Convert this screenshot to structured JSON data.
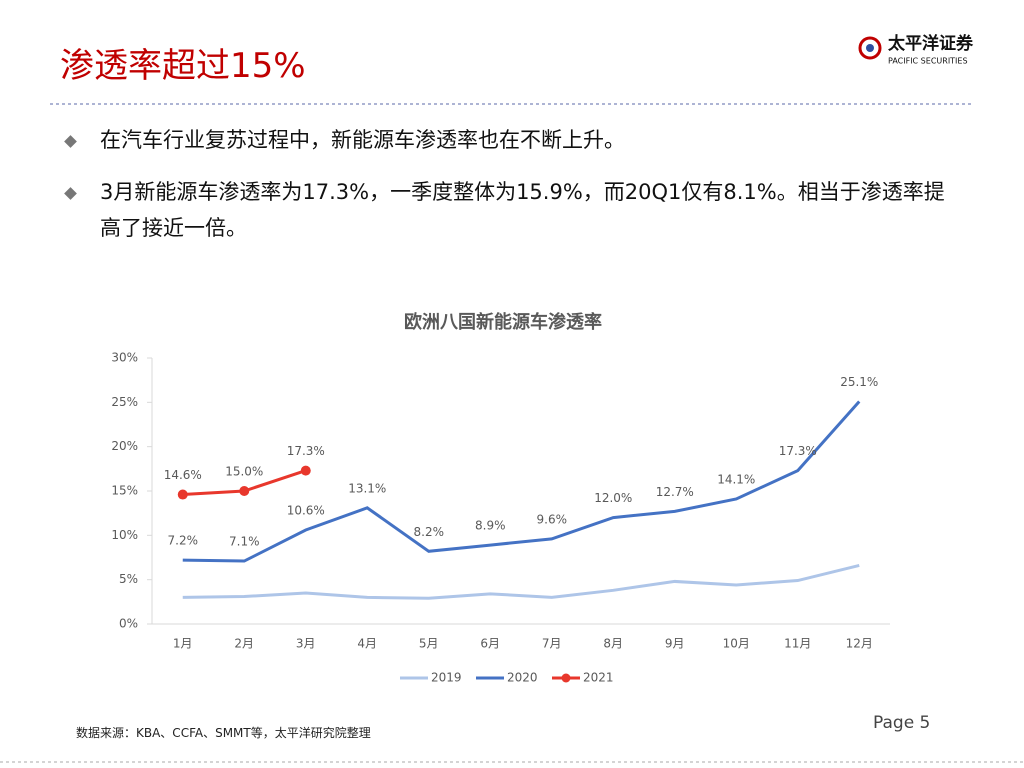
{
  "header": {
    "title": "渗透率超过15%",
    "logo_cn": "太平洋证券",
    "logo_en": "PACIFIC SECURITIES"
  },
  "bullets": [
    "在汽车行业复苏过程中，新能源车渗透率也在不断上升。",
    "3月新能源车渗透率为17.3%，一季度整体为15.9%，而20Q1仅有8.1%。相当于渗透率提高了接近一倍。"
  ],
  "chart_data": {
    "type": "line",
    "title": "欧洲八国新能源车渗透率",
    "categories": [
      "1月",
      "2月",
      "3月",
      "4月",
      "5月",
      "6月",
      "7月",
      "8月",
      "9月",
      "10月",
      "11月",
      "12月"
    ],
    "series": [
      {
        "name": "2019",
        "color": "#aec5e8",
        "values": [
          3.0,
          3.1,
          3.5,
          3.0,
          2.9,
          3.4,
          3.0,
          3.8,
          4.8,
          4.4,
          4.9,
          6.6
        ]
      },
      {
        "name": "2020",
        "color": "#4472c4",
        "values": [
          7.2,
          7.1,
          10.6,
          13.1,
          8.2,
          8.9,
          9.6,
          12.0,
          12.7,
          14.1,
          17.3,
          25.1
        ],
        "value_labels": [
          "7.2%",
          "7.1%",
          "10.6%",
          "13.1%",
          "8.2%",
          "8.9%",
          "9.6%",
          "12.0%",
          "12.7%",
          "14.1%",
          "17.3%",
          "25.1%"
        ]
      },
      {
        "name": "2021",
        "color": "#e8372c",
        "markers": true,
        "values": [
          14.6,
          15.0,
          17.3,
          null,
          null,
          null,
          null,
          null,
          null,
          null,
          null,
          null
        ],
        "value_labels": [
          "14.6%",
          "15.0%",
          "17.3%",
          null,
          null,
          null,
          null,
          null,
          null,
          null,
          null,
          null
        ]
      }
    ],
    "ylim": [
      0,
      30
    ],
    "yticks": [
      {
        "value": 0,
        "label": "0%"
      },
      {
        "value": 5,
        "label": "5%"
      },
      {
        "value": 10,
        "label": "10%"
      },
      {
        "value": 15,
        "label": "15%"
      },
      {
        "value": 20,
        "label": "20%"
      },
      {
        "value": 25,
        "label": "25%"
      },
      {
        "value": 30,
        "label": "30%"
      }
    ],
    "grid": false,
    "legend": "bottom"
  },
  "footer": {
    "source": "数据来源：KBA、CCFA、SMMT等，太平洋研究院整理",
    "page": "Page 5"
  }
}
